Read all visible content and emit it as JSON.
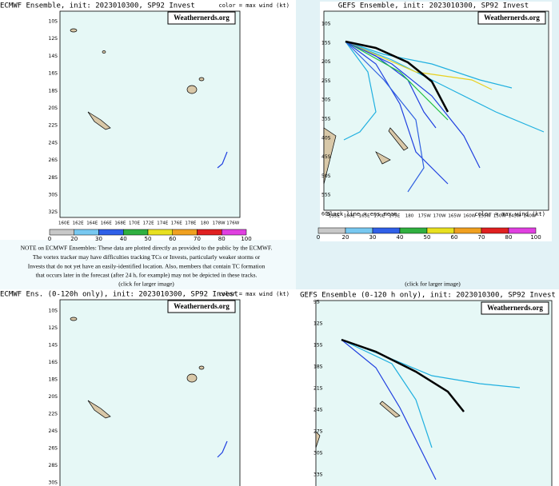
{
  "panels": [
    {
      "title": "ECMWF Ensemble, init: 2023010300, SP92 Invest",
      "color_note": "color = max wind (kt)",
      "badge": "Weathernerds.org",
      "lat_labels": [
        "10S",
        "12S",
        "14S",
        "16S",
        "18S",
        "20S",
        "22S",
        "24S",
        "26S",
        "28S",
        "30S",
        "32S"
      ],
      "lon_labels": [
        "160E",
        "162E",
        "164E",
        "166E",
        "168E",
        "170E",
        "172E",
        "174E",
        "176E",
        "178E",
        "180",
        "178W",
        "176W"
      ],
      "colorbar_ticks": [
        "0",
        "20",
        "30",
        "40",
        "50",
        "60",
        "70",
        "80",
        "100"
      ]
    },
    {
      "title": "GEFS Ensemble, init: 2023010300, SP92 Invest",
      "badge": "Weathernerds.org",
      "lat_labels": [
        "10S",
        "15S",
        "20S",
        "25S",
        "30S",
        "35S",
        "40S",
        "45S",
        "50S",
        "55S",
        "60S"
      ],
      "lon_labels": [
        "155E",
        "160E",
        "165E",
        "170E",
        "175E",
        "180",
        "175W",
        "170W",
        "165W",
        "160W",
        "155W",
        "150W",
        "145W",
        "140W"
      ],
      "mean_note": "black line = ens mean",
      "color_note": "color = max wind (kt)",
      "colorbar_ticks": [
        "0",
        "20",
        "30",
        "40",
        "50",
        "60",
        "70",
        "80",
        "100"
      ]
    },
    {
      "title": "ECMWF Ens. (0-120h only), init: 2023010300, SP92 Invest",
      "color_note": "color = max wind (kt)",
      "badge": "Weathernerds.org",
      "lat_labels": [
        "10S",
        "12S",
        "14S",
        "16S",
        "18S",
        "20S",
        "22S",
        "24S",
        "26S",
        "28S",
        "30S"
      ]
    },
    {
      "title": "GEFS Ensemble (0-120 h only), init: 2023010300, SP92 Invest",
      "badge": "Weathernerds.org",
      "lat_labels": [
        "9S",
        "12S",
        "15S",
        "18S",
        "21S",
        "24S",
        "27S",
        "30S",
        "33S"
      ]
    }
  ],
  "note": [
    "NOTE on ECMWF Ensembles: These data are plotted directly as provided to the public by the ECMWF.",
    "The vortex tracker may have difficulties tracking TCs or Invests, particularly weaker storms or",
    "Invests that do not yet have an easily-identified location. Also, members that contain TC formation",
    "that occurs later in the forecast (after 24 h, for example) may not be depicted in these tracks."
  ],
  "click_left": "(click for larger image)",
  "click_right": "(click for larger image)"
}
